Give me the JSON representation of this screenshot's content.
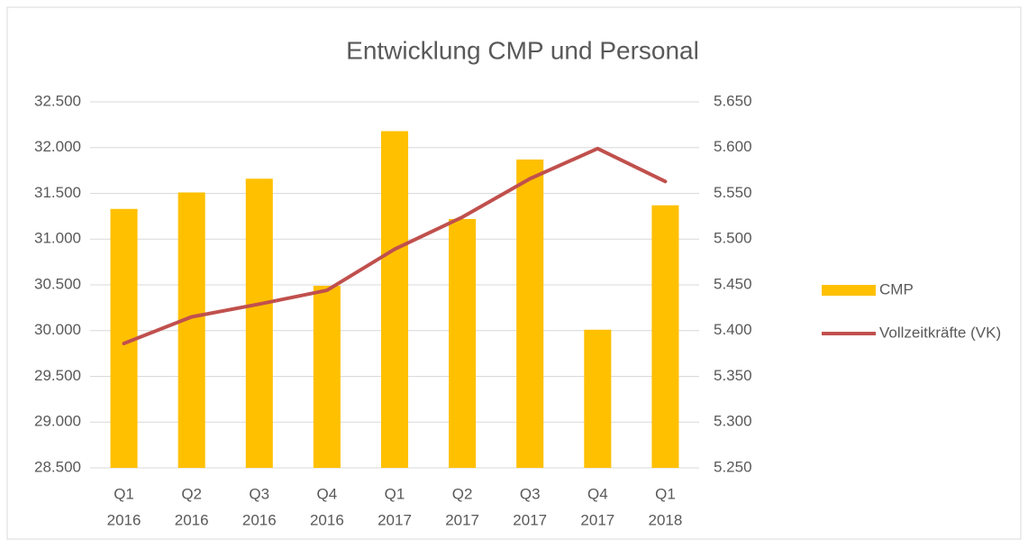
{
  "chart_data": {
    "type": "bar-line",
    "title": "Entwicklung CMP und Personal",
    "categories": [
      [
        "Q1",
        "2016"
      ],
      [
        "Q2",
        "2016"
      ],
      [
        "Q3",
        "2016"
      ],
      [
        "Q4",
        "2016"
      ],
      [
        "Q1",
        "2017"
      ],
      [
        "Q2",
        "2017"
      ],
      [
        "Q3",
        "2017"
      ],
      [
        "Q4",
        "2017"
      ],
      [
        "Q1",
        "2018"
      ]
    ],
    "series": [
      {
        "name": "CMP",
        "type": "bar",
        "color": "#ffc000",
        "values": [
          31330,
          31510,
          31660,
          30490,
          32180,
          31220,
          31870,
          30010,
          31370
        ]
      },
      {
        "name": "Vollzeitkräfte (VK)",
        "type": "line",
        "axis": "y2",
        "color": "#c0504d",
        "values": [
          5386,
          5415,
          5429,
          5444,
          5489,
          5524,
          5566,
          5599,
          5563
        ]
      }
    ],
    "ylim": [
      28500,
      32500
    ],
    "yticks": [
      {
        "value": 28500,
        "label": "28.500"
      },
      {
        "value": 29000,
        "label": "29.000"
      },
      {
        "value": 29500,
        "label": "29.500"
      },
      {
        "value": 30000,
        "label": "30.000"
      },
      {
        "value": 30500,
        "label": "30.500"
      },
      {
        "value": 31000,
        "label": "31.000"
      },
      {
        "value": 31500,
        "label": "31.500"
      },
      {
        "value": 32000,
        "label": "32.000"
      },
      {
        "value": 32500,
        "label": "32.500"
      }
    ],
    "y2lim": [
      5250,
      5650
    ],
    "y2ticks": [
      {
        "value": 5250,
        "label": "5.250"
      },
      {
        "value": 5300,
        "label": "5.300"
      },
      {
        "value": 5350,
        "label": "5.350"
      },
      {
        "value": 5400,
        "label": "5.400"
      },
      {
        "value": 5450,
        "label": "5.450"
      },
      {
        "value": 5500,
        "label": "5.500"
      },
      {
        "value": 5550,
        "label": "5.550"
      },
      {
        "value": 5600,
        "label": "5.600"
      },
      {
        "value": 5650,
        "label": "5.650"
      }
    ],
    "grid": true,
    "legend": "right"
  }
}
